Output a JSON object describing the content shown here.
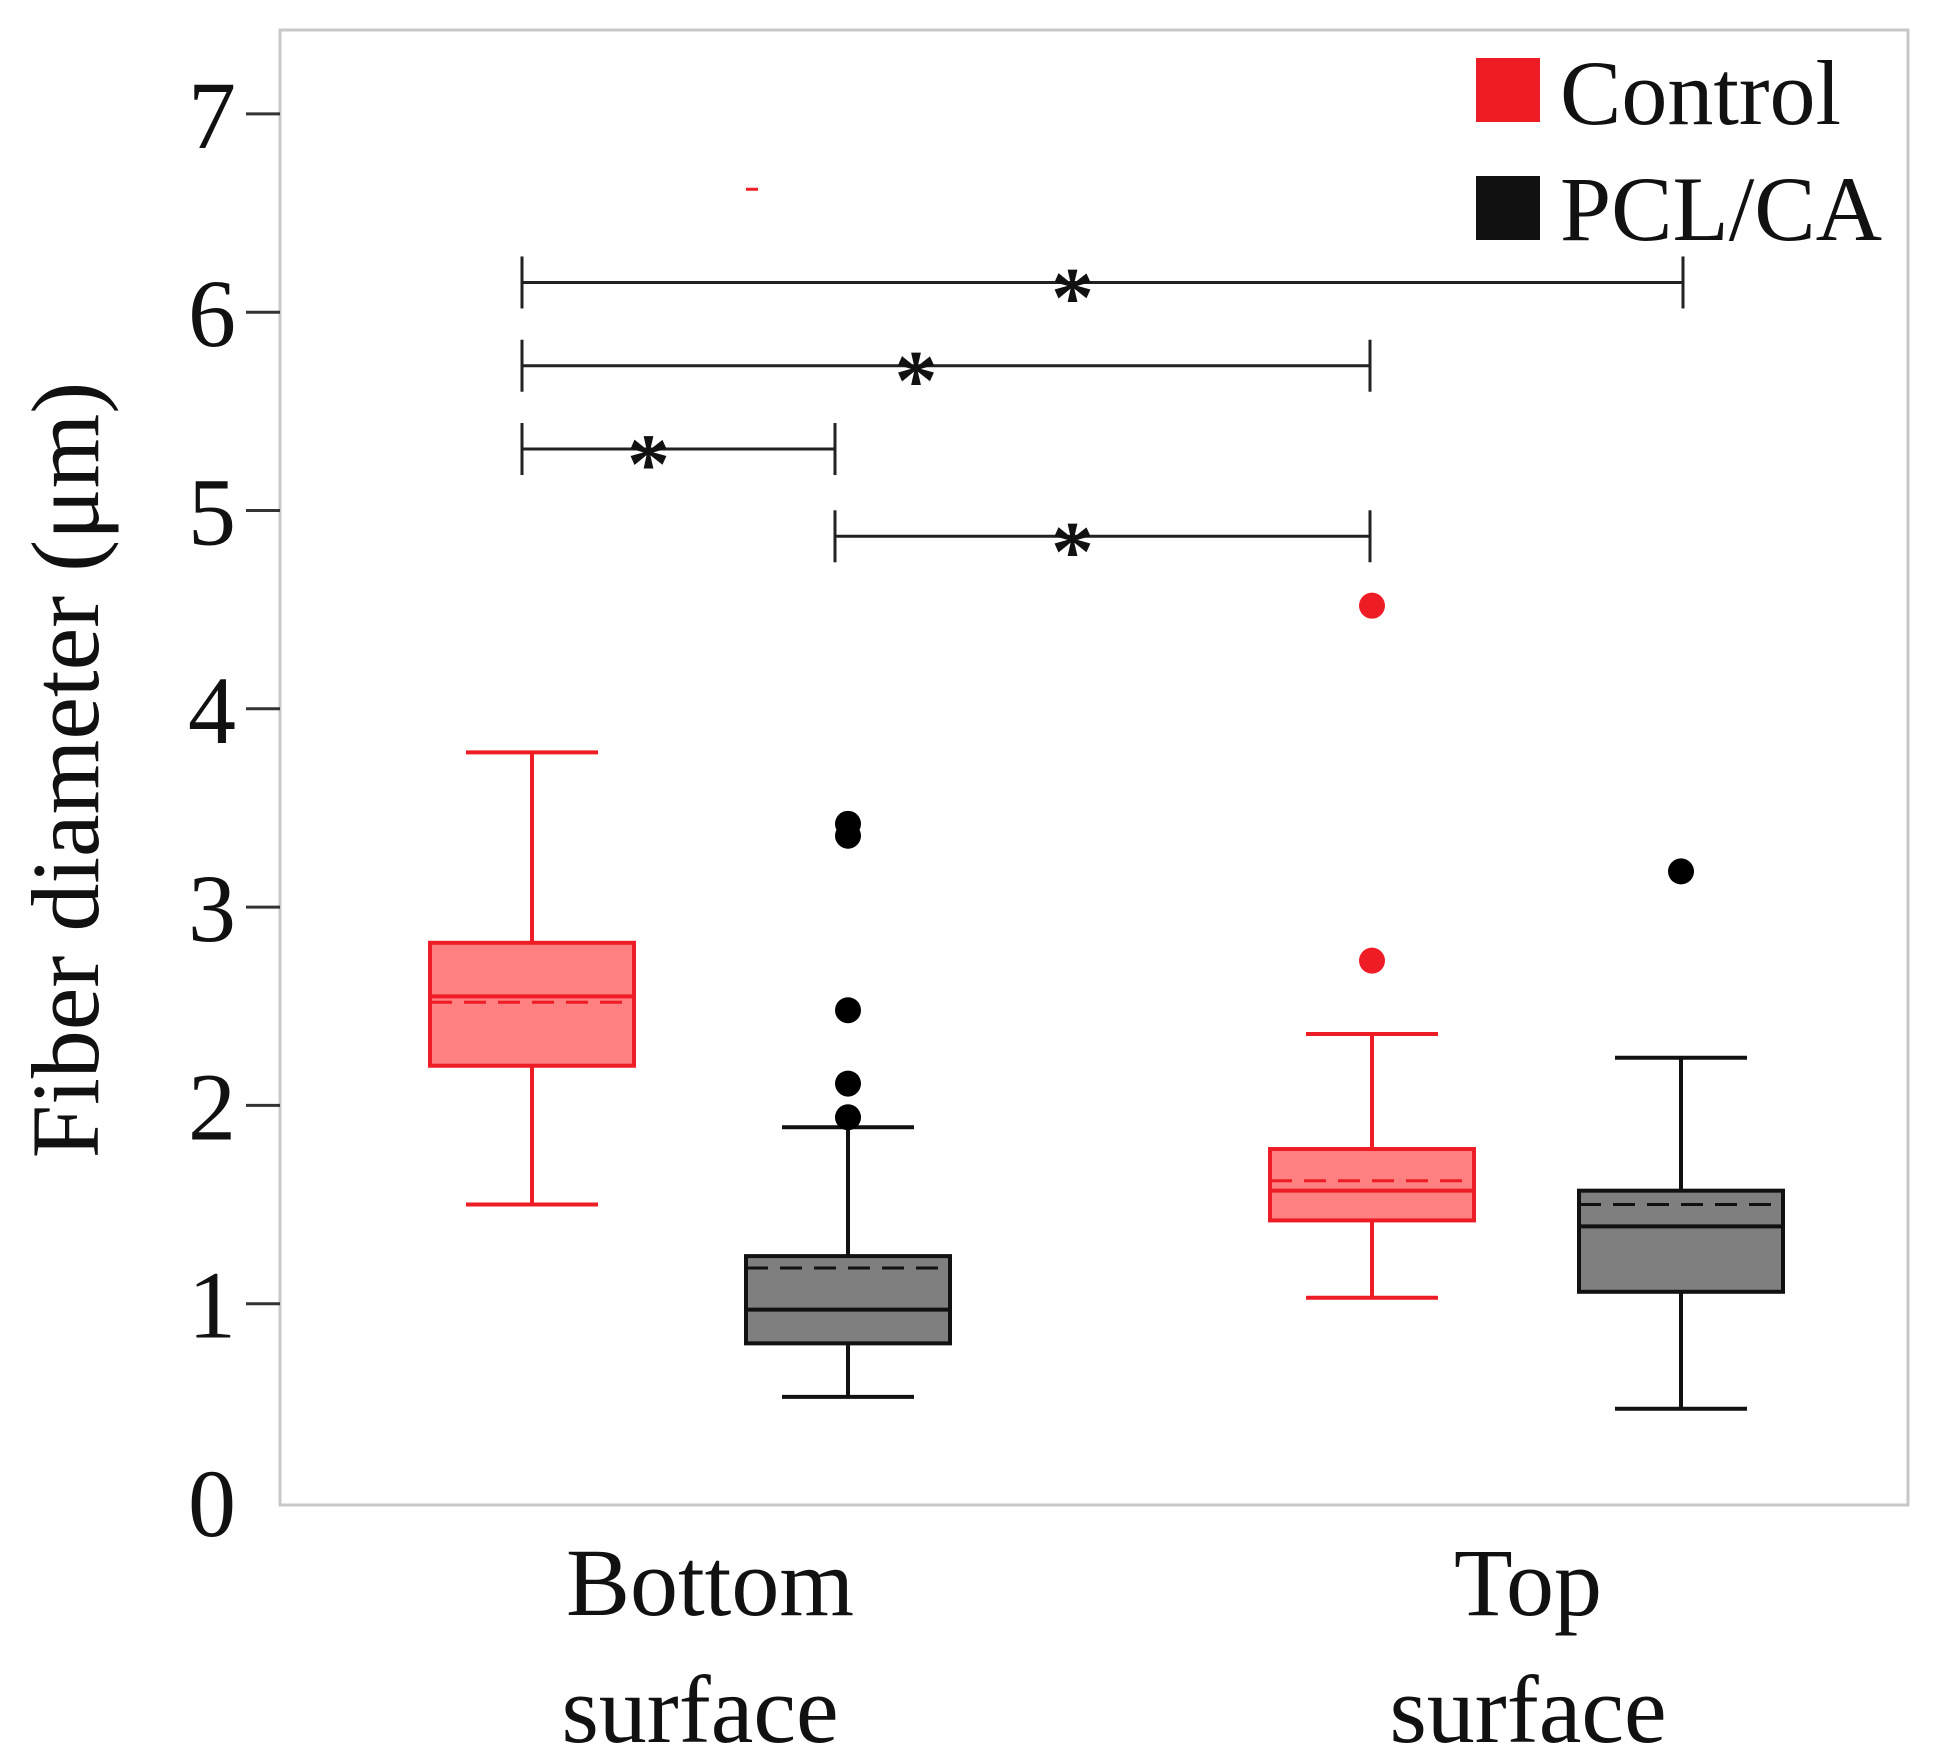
{
  "chart_data": {
    "type": "box",
    "title": "",
    "xlabel": "",
    "ylabel": "Fiber diameter (μm)",
    "ylim": [
      0,
      7.6
    ],
    "yticks": [
      0,
      1,
      2,
      3,
      4,
      5,
      6,
      7
    ],
    "ytick_labels": [
      "0",
      "1",
      "2",
      "3",
      "4",
      "5",
      "6",
      "7"
    ],
    "categories": [
      {
        "line1": "Bottom",
        "line2": "surface"
      },
      {
        "line1": "Top",
        "line2": "surface"
      }
    ],
    "series": [
      {
        "name": "Control",
        "color": "#ee1c24",
        "fill": "#ff8080",
        "boxes": [
          {
            "category": "Bottom surface",
            "whisker_low": 1.5,
            "q1": 2.2,
            "median": 2.55,
            "mean": 2.52,
            "q3": 2.82,
            "whisker_high": 3.78,
            "outliers": [
              6.62
            ]
          },
          {
            "category": "Top surface",
            "whisker_low": 1.03,
            "q1": 1.42,
            "median": 1.57,
            "mean": 1.62,
            "q3": 1.78,
            "whisker_high": 2.36,
            "outliers": [
              2.73,
              4.52
            ]
          }
        ]
      },
      {
        "name": "PCL/CA",
        "color": "#111111",
        "fill": "#7f7f7f",
        "boxes": [
          {
            "category": "Bottom surface",
            "whisker_low": 0.53,
            "q1": 0.8,
            "median": 0.97,
            "mean": 1.18,
            "q3": 1.24,
            "whisker_high": 1.89,
            "outliers": [
              1.94,
              2.11,
              2.48,
              3.36,
              3.42
            ]
          },
          {
            "category": "Top surface",
            "whisker_low": 0.47,
            "q1": 1.06,
            "median": 1.39,
            "mean": 1.5,
            "q3": 1.57,
            "whisker_high": 2.24,
            "outliers": [
              3.18
            ]
          }
        ]
      }
    ],
    "significance": [
      {
        "from": "Control · Bottom surface",
        "to": "PCL/CA · Top surface",
        "y": 6.15,
        "label": "*"
      },
      {
        "from": "Control · Bottom surface",
        "to": "Control · Top surface",
        "y": 5.73,
        "label": "*"
      },
      {
        "from": "Control · Bottom surface",
        "to": "PCL/CA · Bottom surface",
        "y": 5.31,
        "label": "*"
      },
      {
        "from": "PCL/CA · Bottom surface",
        "to": "Control · Top surface",
        "y": 4.87,
        "label": "*"
      }
    ],
    "legend": {
      "position": "top-right",
      "entries": [
        "Control",
        "PCL/CA"
      ]
    },
    "grid": false
  }
}
